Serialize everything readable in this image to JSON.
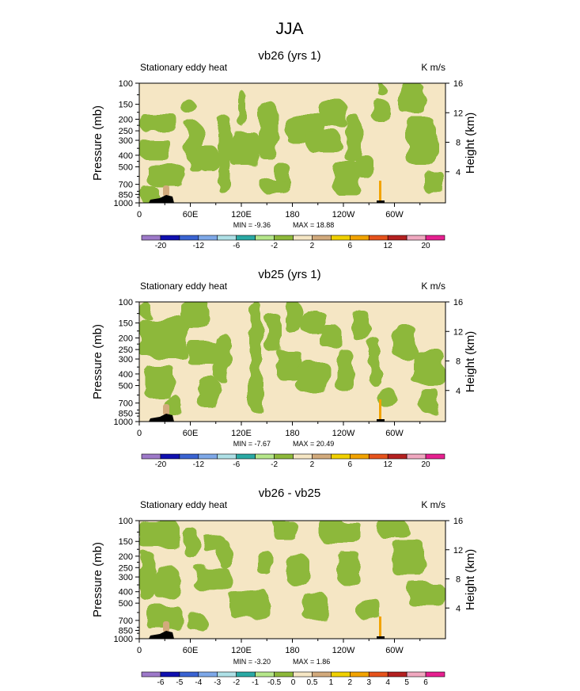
{
  "figure": {
    "title": "JJA"
  },
  "colors": {
    "background_field": "#f5e6c4",
    "green_field": "#8db83a",
    "terrain": "#000000",
    "frame": "#000000"
  },
  "chart_data": [
    {
      "type": "heatmap",
      "title": "vb26 (yrs 1)",
      "left_label": "Stationary eddy heat",
      "right_label": "K m/s",
      "ylabel": "Pressure (mb)",
      "ylabel_right": "Height (km)",
      "x_ticks": [
        "0",
        "60E",
        "120E",
        "180",
        "120W",
        "60W"
      ],
      "x_tick_values": [
        0,
        60,
        120,
        180,
        240,
        300
      ],
      "xlim": [
        0,
        360
      ],
      "y_ticks": [
        "100",
        "150",
        "200",
        "250",
        "300",
        "400",
        "500",
        "700",
        "850",
        "1000"
      ],
      "y_tick_values": [
        100,
        150,
        200,
        250,
        300,
        400,
        500,
        700,
        850,
        1000
      ],
      "ylim": [
        1000,
        100
      ],
      "height_ticks": [
        "4",
        "8",
        "12",
        "16"
      ],
      "height_tick_values": [
        4,
        8,
        12,
        16
      ],
      "min_label": "MIN = -9.36",
      "max_label": "MAX = 18.88",
      "min": -9.36,
      "max": 18.88,
      "colorbar": {
        "labels": [
          "-20",
          "-12",
          "-6",
          "-2",
          "2",
          "6",
          "12",
          "20"
        ],
        "colors": [
          "#9d79c9",
          "#1010b0",
          "#3a63d2",
          "#7ea8e8",
          "#aee0e6",
          "#2aa9a4",
          "#b5e68a",
          "#8db83a",
          "#f5e6c4",
          "#d2aa7c",
          "#f0d000",
          "#f2a300",
          "#e6531c",
          "#b42020",
          "#f0a8c0",
          "#e62090"
        ]
      }
    },
    {
      "type": "heatmap",
      "title": "vb25 (yrs 1)",
      "left_label": "Stationary eddy heat",
      "right_label": "K m/s",
      "ylabel": "Pressure (mb)",
      "ylabel_right": "Height (km)",
      "x_ticks": [
        "0",
        "60E",
        "120E",
        "180",
        "120W",
        "60W"
      ],
      "x_tick_values": [
        0,
        60,
        120,
        180,
        240,
        300
      ],
      "xlim": [
        0,
        360
      ],
      "y_ticks": [
        "100",
        "150",
        "200",
        "250",
        "300",
        "400",
        "500",
        "700",
        "850",
        "1000"
      ],
      "y_tick_values": [
        100,
        150,
        200,
        250,
        300,
        400,
        500,
        700,
        850,
        1000
      ],
      "ylim": [
        1000,
        100
      ],
      "height_ticks": [
        "4",
        "8",
        "12",
        "16"
      ],
      "height_tick_values": [
        4,
        8,
        12,
        16
      ],
      "min_label": "MIN = -7.67",
      "max_label": "MAX = 20.49",
      "min": -7.67,
      "max": 20.49,
      "colorbar": {
        "labels": [
          "-20",
          "-12",
          "-6",
          "-2",
          "2",
          "6",
          "12",
          "20"
        ],
        "colors": [
          "#9d79c9",
          "#1010b0",
          "#3a63d2",
          "#7ea8e8",
          "#aee0e6",
          "#2aa9a4",
          "#b5e68a",
          "#8db83a",
          "#f5e6c4",
          "#d2aa7c",
          "#f0d000",
          "#f2a300",
          "#e6531c",
          "#b42020",
          "#f0a8c0",
          "#e62090"
        ]
      }
    },
    {
      "type": "heatmap",
      "title": "vb26 - vb25",
      "left_label": "Stationary eddy heat",
      "right_label": "K m/s",
      "ylabel": "Pressure (mb)",
      "ylabel_right": "Height (km)",
      "x_ticks": [
        "0",
        "60E",
        "120E",
        "180",
        "120W",
        "60W"
      ],
      "x_tick_values": [
        0,
        60,
        120,
        180,
        240,
        300
      ],
      "xlim": [
        0,
        360
      ],
      "y_ticks": [
        "100",
        "150",
        "200",
        "250",
        "300",
        "400",
        "500",
        "700",
        "850",
        "1000"
      ],
      "y_tick_values": [
        100,
        150,
        200,
        250,
        300,
        400,
        500,
        700,
        850,
        1000
      ],
      "ylim": [
        1000,
        100
      ],
      "height_ticks": [
        "4",
        "8",
        "12",
        "16"
      ],
      "height_tick_values": [
        4,
        8,
        12,
        16
      ],
      "min_label": "MIN = -3.20",
      "max_label": "MAX =  1.86",
      "min": -3.2,
      "max": 1.86,
      "colorbar": {
        "labels": [
          "-6",
          "-5",
          "-4",
          "-3",
          "-2",
          "-1",
          "-0.5",
          "0",
          "0.5",
          "1",
          "2",
          "3",
          "4",
          "5",
          "6"
        ],
        "colors": [
          "#9d79c9",
          "#1010b0",
          "#3a63d2",
          "#7ea8e8",
          "#aee0e6",
          "#2aa9a4",
          "#b5e68a",
          "#8db83a",
          "#f5e6c4",
          "#d2aa7c",
          "#f0d000",
          "#f2a300",
          "#e6531c",
          "#b42020",
          "#f0a8c0",
          "#e62090"
        ]
      }
    }
  ]
}
